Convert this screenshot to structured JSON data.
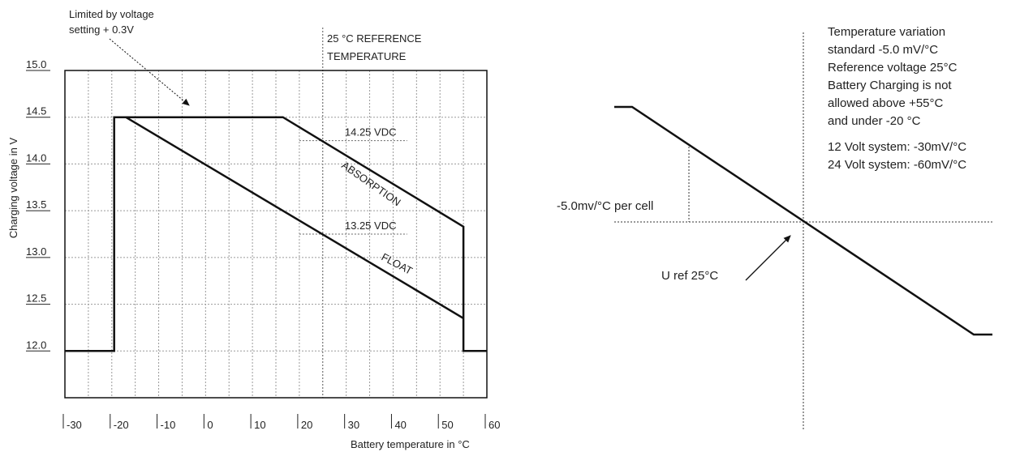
{
  "chart_data": [
    {
      "type": "line",
      "title": "",
      "xlabel": "Battery temperature in °C",
      "ylabel": "Charging voltage in V",
      "xlim": [
        -30,
        60
      ],
      "ylim": [
        11.5,
        15.0
      ],
      "x_ticks": [
        -30,
        -20,
        -10,
        0,
        10,
        20,
        30,
        40,
        50,
        60
      ],
      "x_tick_labels": [
        "-30",
        "-20",
        "-10",
        "0",
        "10",
        "20",
        "30",
        "40",
        "50",
        "60"
      ],
      "y_ticks": [
        12.0,
        12.5,
        13.0,
        13.5,
        14.0,
        14.5,
        15.0
      ],
      "y_tick_labels": [
        "12.0",
        "12.5",
        "13.0",
        "13.5",
        "14.0",
        "14.5",
        "15.0"
      ],
      "grid": true,
      "series": [
        {
          "name": "ABSORPTION",
          "color": "#111111",
          "points": [
            [
              -30,
              12.0
            ],
            [
              -19.5,
              12.0
            ],
            [
              -19.5,
              14.5
            ],
            [
              16.5,
              14.5
            ],
            [
              55,
              13.33
            ],
            [
              55,
              12.0
            ],
            [
              60,
              12.0
            ]
          ]
        },
        {
          "name": "FLOAT",
          "color": "#111111",
          "points": [
            [
              -17,
              14.5
            ],
            [
              55,
              12.35
            ]
          ]
        }
      ],
      "reference_lines": [
        {
          "value": 14.25,
          "label": "14.25 VDC",
          "x_from": 20,
          "x_to": 43
        },
        {
          "value": 13.25,
          "label": "13.25 VDC",
          "x_from": 20,
          "x_to": 43
        }
      ],
      "reference_temperature": {
        "x": 25,
        "label_lines": [
          "25 °C REFERENCE",
          "TEMPERATURE"
        ]
      },
      "annotations": {
        "limit": {
          "lines": [
            "Limited by voltage",
            "setting + 0.3V"
          ],
          "points_to": [
            -5,
            14.6
          ]
        }
      }
    },
    {
      "type": "line",
      "title": "",
      "xlabel": "",
      "ylabel": "",
      "series": [
        {
          "name": "",
          "color": "#111111",
          "points": [
            [
              -8,
              3
            ],
            [
              -7,
              3
            ],
            [
              7,
              -2.5
            ],
            [
              8,
              -2.5
            ]
          ]
        }
      ],
      "annotations": {
        "slope_label": "-5.0mv/°C per cell",
        "uref_label": "U ref 25°C",
        "notes": [
          "Temperature variation",
          "standard -5.0 mV/°C",
          "Reference voltage 25°C",
          "Battery Charging is not",
          "allowed above +55°C",
          "and under -20 °C",
          "12 Volt system: -30mV/°C",
          "24 Volt system: -60mV/°C"
        ]
      }
    }
  ]
}
